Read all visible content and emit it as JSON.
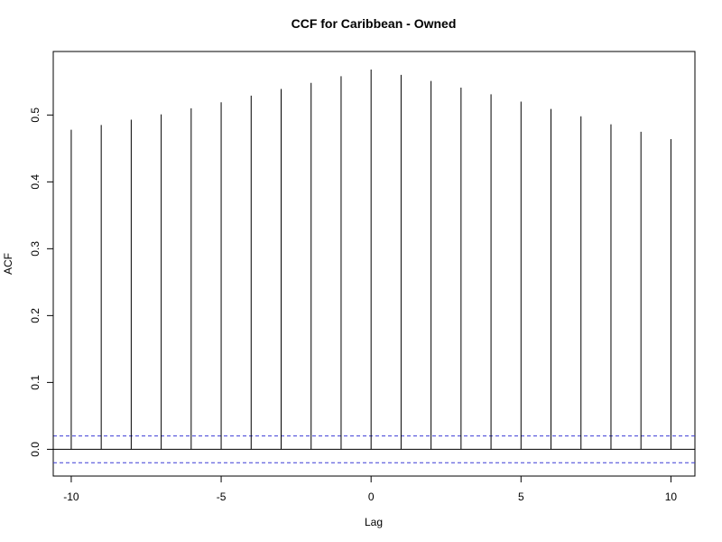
{
  "chart_data": {
    "type": "bar",
    "title": "CCF for Caribbean - Owned",
    "xlabel": "Lag",
    "ylabel": "ACF",
    "x": [
      -10,
      -9,
      -8,
      -7,
      -6,
      -5,
      -4,
      -3,
      -2,
      -1,
      0,
      1,
      2,
      3,
      4,
      5,
      6,
      7,
      8,
      9,
      10
    ],
    "values": [
      0.478,
      0.485,
      0.493,
      0.501,
      0.51,
      0.519,
      0.529,
      0.539,
      0.548,
      0.558,
      0.568,
      0.56,
      0.551,
      0.541,
      0.531,
      0.52,
      0.509,
      0.498,
      0.486,
      0.475,
      0.464
    ],
    "confidence_band": 0.02,
    "xlim": [
      -10.6,
      10.8
    ],
    "ylim": [
      -0.04,
      0.595
    ],
    "x_ticks": [
      -10,
      -5,
      0,
      5,
      10
    ],
    "x_tick_labels": [
      "-10",
      "-5",
      "0",
      "5",
      "10"
    ],
    "y_ticks": [
      0.0,
      0.1,
      0.2,
      0.3,
      0.4,
      0.5
    ],
    "y_tick_labels": [
      "0.0",
      "0.1",
      "0.2",
      "0.3",
      "0.4",
      "0.5"
    ],
    "grid": false,
    "colors": {
      "bars": "#000000",
      "zero_line": "#000000",
      "confidence": "#3b3bd6",
      "axis": "#000000"
    }
  }
}
